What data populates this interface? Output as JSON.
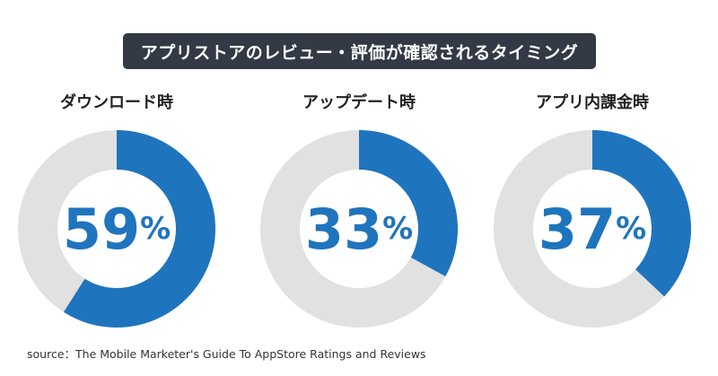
{
  "title": "アプリストアのレビュー・評価が確認されるタイミング",
  "source": "source：The Mobile Marketer's Guide To AppStore Ratings and Reviews",
  "colors": {
    "filled": "#1f74be",
    "remaining": "#e1e1e1",
    "value_text": "#1f74be",
    "title_bg": "#333a45"
  },
  "chart_data": [
    {
      "type": "pie",
      "label": "ダウンロード時",
      "value": 59,
      "unit": "%"
    },
    {
      "type": "pie",
      "label": "アップデート時",
      "value": 33,
      "unit": "%"
    },
    {
      "type": "pie",
      "label": "アプリ内課金時",
      "value": 37,
      "unit": "%"
    }
  ]
}
